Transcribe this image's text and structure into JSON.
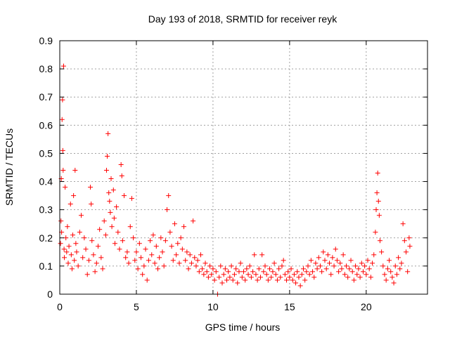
{
  "chart_data": {
    "type": "scatter",
    "title": "Day 193 of 2018, SRMTID for receiver reyk",
    "xlabel": "GPS time / hours",
    "ylabel": "SRMTID / TECUs",
    "xlim": [
      0,
      24
    ],
    "ylim": [
      0,
      0.9
    ],
    "x_ticks": [
      0,
      5,
      10,
      15,
      20
    ],
    "x_tick_labels": [
      "0",
      "5",
      "10",
      "15",
      "20"
    ],
    "y_ticks": [
      0,
      0.1,
      0.2,
      0.3,
      0.4,
      0.5,
      0.6,
      0.7,
      0.8,
      0.9
    ],
    "y_tick_labels": [
      "0",
      "0.1",
      "0.2",
      "0.3",
      "0.4",
      "0.5",
      "0.6",
      "0.7",
      "0.8",
      "0.9"
    ],
    "grid": true,
    "marker": "+",
    "color": "#ff0000",
    "series": [
      {
        "name": "SRMTID",
        "points": [
          [
            0.05,
            0.18
          ],
          [
            0.08,
            0.26
          ],
          [
            0.1,
            0.41
          ],
          [
            0.12,
            0.22
          ],
          [
            0.15,
            0.62
          ],
          [
            0.18,
            0.69
          ],
          [
            0.2,
            0.51
          ],
          [
            0.22,
            0.44
          ],
          [
            0.25,
            0.81
          ],
          [
            0.28,
            0.16
          ],
          [
            0.3,
            0.13
          ],
          [
            0.35,
            0.38
          ],
          [
            0.4,
            0.2
          ],
          [
            0.45,
            0.15
          ],
          [
            0.5,
            0.24
          ],
          [
            0.55,
            0.11
          ],
          [
            0.6,
            0.17
          ],
          [
            0.7,
            0.32
          ],
          [
            0.75,
            0.14
          ],
          [
            0.8,
            0.09
          ],
          [
            0.85,
            0.21
          ],
          [
            0.9,
            0.35
          ],
          [
            0.95,
            0.12
          ],
          [
            1.0,
            0.44
          ],
          [
            1.05,
            0.18
          ],
          [
            1.1,
            0.15
          ],
          [
            1.2,
            0.1
          ],
          [
            1.3,
            0.22
          ],
          [
            1.4,
            0.28
          ],
          [
            1.5,
            0.13
          ],
          [
            1.6,
            0.2
          ],
          [
            1.7,
            0.16
          ],
          [
            1.8,
            0.07
          ],
          [
            1.9,
            0.12
          ],
          [
            2.0,
            0.38
          ],
          [
            2.05,
            0.32
          ],
          [
            2.1,
            0.19
          ],
          [
            2.2,
            0.14
          ],
          [
            2.3,
            0.08
          ],
          [
            2.4,
            0.11
          ],
          [
            2.5,
            0.17
          ],
          [
            2.6,
            0.23
          ],
          [
            2.7,
            0.13
          ],
          [
            2.8,
            0.09
          ],
          [
            2.9,
            0.26
          ],
          [
            3.0,
            0.21
          ],
          [
            3.05,
            0.44
          ],
          [
            3.1,
            0.49
          ],
          [
            3.15,
            0.57
          ],
          [
            3.2,
            0.36
          ],
          [
            3.25,
            0.33
          ],
          [
            3.3,
            0.29
          ],
          [
            3.35,
            0.41
          ],
          [
            3.4,
            0.24
          ],
          [
            3.5,
            0.37
          ],
          [
            3.55,
            0.27
          ],
          [
            3.6,
            0.18
          ],
          [
            3.7,
            0.31
          ],
          [
            3.8,
            0.22
          ],
          [
            3.9,
            0.16
          ],
          [
            4.0,
            0.46
          ],
          [
            4.05,
            0.42
          ],
          [
            4.1,
            0.19
          ],
          [
            4.2,
            0.35
          ],
          [
            4.3,
            0.13
          ],
          [
            4.4,
            0.15
          ],
          [
            4.5,
            0.11
          ],
          [
            4.6,
            0.24
          ],
          [
            4.7,
            0.34
          ],
          [
            4.8,
            0.2
          ],
          [
            4.9,
            0.12
          ],
          [
            5.0,
            0.15
          ],
          [
            5.1,
            0.09
          ],
          [
            5.2,
            0.18
          ],
          [
            5.3,
            0.13
          ],
          [
            5.4,
            0.07
          ],
          [
            5.5,
            0.1
          ],
          [
            5.6,
            0.16
          ],
          [
            5.7,
            0.05
          ],
          [
            5.8,
            0.12
          ],
          [
            5.9,
            0.19
          ],
          [
            6.0,
            0.14
          ],
          [
            6.1,
            0.21
          ],
          [
            6.2,
            0.11
          ],
          [
            6.3,
            0.17
          ],
          [
            6.4,
            0.09
          ],
          [
            6.5,
            0.13
          ],
          [
            6.6,
            0.2
          ],
          [
            6.7,
            0.15
          ],
          [
            6.8,
            0.1
          ],
          [
            6.9,
            0.19
          ],
          [
            7.0,
            0.3
          ],
          [
            7.1,
            0.35
          ],
          [
            7.2,
            0.22
          ],
          [
            7.3,
            0.17
          ],
          [
            7.4,
            0.12
          ],
          [
            7.5,
            0.25
          ],
          [
            7.6,
            0.14
          ],
          [
            7.7,
            0.18
          ],
          [
            7.8,
            0.11
          ],
          [
            7.9,
            0.2
          ],
          [
            8.0,
            0.16
          ],
          [
            8.1,
            0.24
          ],
          [
            8.2,
            0.12
          ],
          [
            8.3,
            0.15
          ],
          [
            8.4,
            0.09
          ],
          [
            8.5,
            0.14
          ],
          [
            8.6,
            0.11
          ],
          [
            8.7,
            0.26
          ],
          [
            8.8,
            0.13
          ],
          [
            8.9,
            0.1
          ],
          [
            9.0,
            0.12
          ],
          [
            9.1,
            0.08
          ],
          [
            9.2,
            0.14
          ],
          [
            9.3,
            0.09
          ],
          [
            9.4,
            0.07
          ],
          [
            9.5,
            0.11
          ],
          [
            9.6,
            0.08
          ],
          [
            9.7,
            0.06
          ],
          [
            9.8,
            0.1
          ],
          [
            9.9,
            0.07
          ],
          [
            10.0,
            0.09
          ],
          [
            10.1,
            0.05
          ],
          [
            10.2,
            0.08
          ],
          [
            10.3,
            0.0
          ],
          [
            10.4,
            0.06
          ],
          [
            10.5,
            0.1
          ],
          [
            10.6,
            0.04
          ],
          [
            10.7,
            0.07
          ],
          [
            10.8,
            0.09
          ],
          [
            10.9,
            0.05
          ],
          [
            11.0,
            0.08
          ],
          [
            11.1,
            0.06
          ],
          [
            11.2,
            0.1
          ],
          [
            11.3,
            0.05
          ],
          [
            11.4,
            0.07
          ],
          [
            11.5,
            0.09
          ],
          [
            11.6,
            0.04
          ],
          [
            11.7,
            0.08
          ],
          [
            11.8,
            0.11
          ],
          [
            11.9,
            0.06
          ],
          [
            12.0,
            0.08
          ],
          [
            12.1,
            0.05
          ],
          [
            12.2,
            0.09
          ],
          [
            12.3,
            0.07
          ],
          [
            12.4,
            0.1
          ],
          [
            12.5,
            0.06
          ],
          [
            12.6,
            0.08
          ],
          [
            12.7,
            0.14
          ],
          [
            12.8,
            0.07
          ],
          [
            12.9,
            0.05
          ],
          [
            13.0,
            0.09
          ],
          [
            13.1,
            0.06
          ],
          [
            13.2,
            0.14
          ],
          [
            13.3,
            0.08
          ],
          [
            13.4,
            0.1
          ],
          [
            13.5,
            0.07
          ],
          [
            13.6,
            0.05
          ],
          [
            13.7,
            0.09
          ],
          [
            13.8,
            0.06
          ],
          [
            13.9,
            0.08
          ],
          [
            14.0,
            0.11
          ],
          [
            14.1,
            0.07
          ],
          [
            14.2,
            0.05
          ],
          [
            14.3,
            0.09
          ],
          [
            14.4,
            0.06
          ],
          [
            14.5,
            0.1
          ],
          [
            14.6,
            0.12
          ],
          [
            14.7,
            0.07
          ],
          [
            14.8,
            0.05
          ],
          [
            14.9,
            0.08
          ],
          [
            15.0,
            0.06
          ],
          [
            15.1,
            0.09
          ],
          [
            15.2,
            0.05
          ],
          [
            15.3,
            0.07
          ],
          [
            15.4,
            0.04
          ],
          [
            15.5,
            0.08
          ],
          [
            15.6,
            0.06
          ],
          [
            15.7,
            0.03
          ],
          [
            15.8,
            0.07
          ],
          [
            15.9,
            0.09
          ],
          [
            16.0,
            0.05
          ],
          [
            16.1,
            0.08
          ],
          [
            16.2,
            0.1
          ],
          [
            16.3,
            0.07
          ],
          [
            16.4,
            0.12
          ],
          [
            16.5,
            0.08
          ],
          [
            16.6,
            0.06
          ],
          [
            16.7,
            0.11
          ],
          [
            16.8,
            0.09
          ],
          [
            16.9,
            0.13
          ],
          [
            17.0,
            0.1
          ],
          [
            17.1,
            0.08
          ],
          [
            17.2,
            0.15
          ],
          [
            17.3,
            0.12
          ],
          [
            17.4,
            0.09
          ],
          [
            17.5,
            0.14
          ],
          [
            17.6,
            0.11
          ],
          [
            17.7,
            0.07
          ],
          [
            17.8,
            0.13
          ],
          [
            17.9,
            0.1
          ],
          [
            18.0,
            0.16
          ],
          [
            18.1,
            0.12
          ],
          [
            18.2,
            0.08
          ],
          [
            18.3,
            0.11
          ],
          [
            18.4,
            0.09
          ],
          [
            18.5,
            0.14
          ],
          [
            18.6,
            0.07
          ],
          [
            18.7,
            0.1
          ],
          [
            18.8,
            0.06
          ],
          [
            18.9,
            0.09
          ],
          [
            19.0,
            0.12
          ],
          [
            19.1,
            0.08
          ],
          [
            19.2,
            0.05
          ],
          [
            19.3,
            0.1
          ],
          [
            19.4,
            0.07
          ],
          [
            19.5,
            0.09
          ],
          [
            19.6,
            0.06
          ],
          [
            19.7,
            0.11
          ],
          [
            19.8,
            0.08
          ],
          [
            19.9,
            0.1
          ],
          [
            20.0,
            0.07
          ],
          [
            20.1,
            0.12
          ],
          [
            20.2,
            0.09
          ],
          [
            20.3,
            0.06
          ],
          [
            20.4,
            0.11
          ],
          [
            20.5,
            0.14
          ],
          [
            20.6,
            0.22
          ],
          [
            20.65,
            0.3
          ],
          [
            20.7,
            0.36
          ],
          [
            20.75,
            0.43
          ],
          [
            20.8,
            0.33
          ],
          [
            20.85,
            0.28
          ],
          [
            20.9,
            0.19
          ],
          [
            21.0,
            0.15
          ],
          [
            21.1,
            0.1
          ],
          [
            21.2,
            0.07
          ],
          [
            21.3,
            0.05
          ],
          [
            21.4,
            0.09
          ],
          [
            21.5,
            0.12
          ],
          [
            21.6,
            0.08
          ],
          [
            21.7,
            0.06
          ],
          [
            21.8,
            0.04
          ],
          [
            21.9,
            0.1
          ],
          [
            22.0,
            0.07
          ],
          [
            22.1,
            0.13
          ],
          [
            22.2,
            0.09
          ],
          [
            22.3,
            0.11
          ],
          [
            22.4,
            0.25
          ],
          [
            22.5,
            0.19
          ],
          [
            22.6,
            0.15
          ],
          [
            22.7,
            0.08
          ],
          [
            22.8,
            0.2
          ],
          [
            22.85,
            0.17
          ]
        ]
      }
    ]
  }
}
